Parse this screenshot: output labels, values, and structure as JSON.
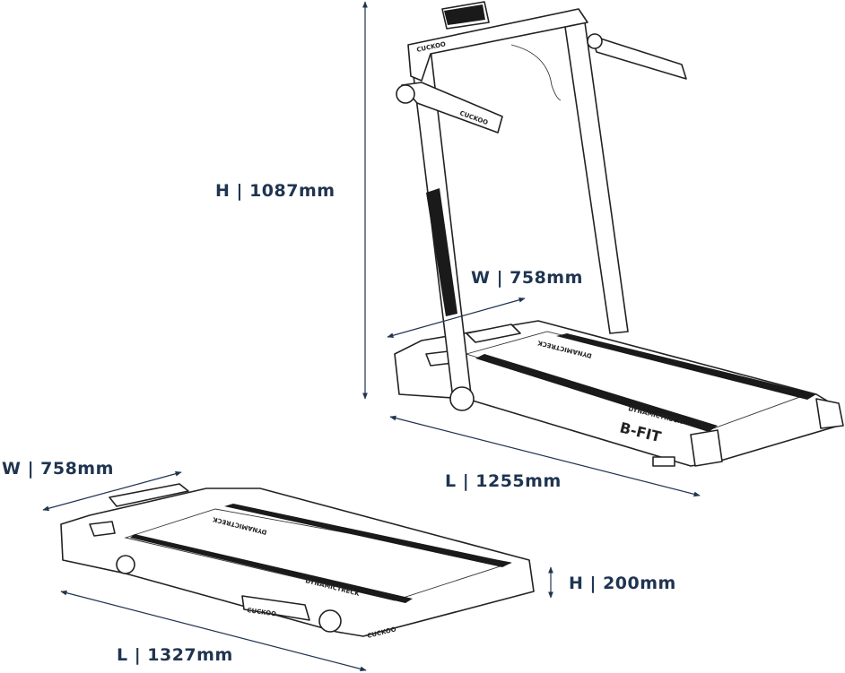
{
  "dimensions": {
    "upright": {
      "height": "H | 1087mm",
      "width": "W | 758mm",
      "length": "L | 1255mm"
    },
    "folded": {
      "width": "W | 758mm",
      "height": "H | 200mm",
      "length": "L | 1327mm"
    }
  },
  "branding": {
    "brand": "CUCKOO",
    "deck_label": "DYNAMICTRECK",
    "model": "B-FIT"
  },
  "colors": {
    "label": "#1f3450",
    "line_art": "#222222"
  }
}
